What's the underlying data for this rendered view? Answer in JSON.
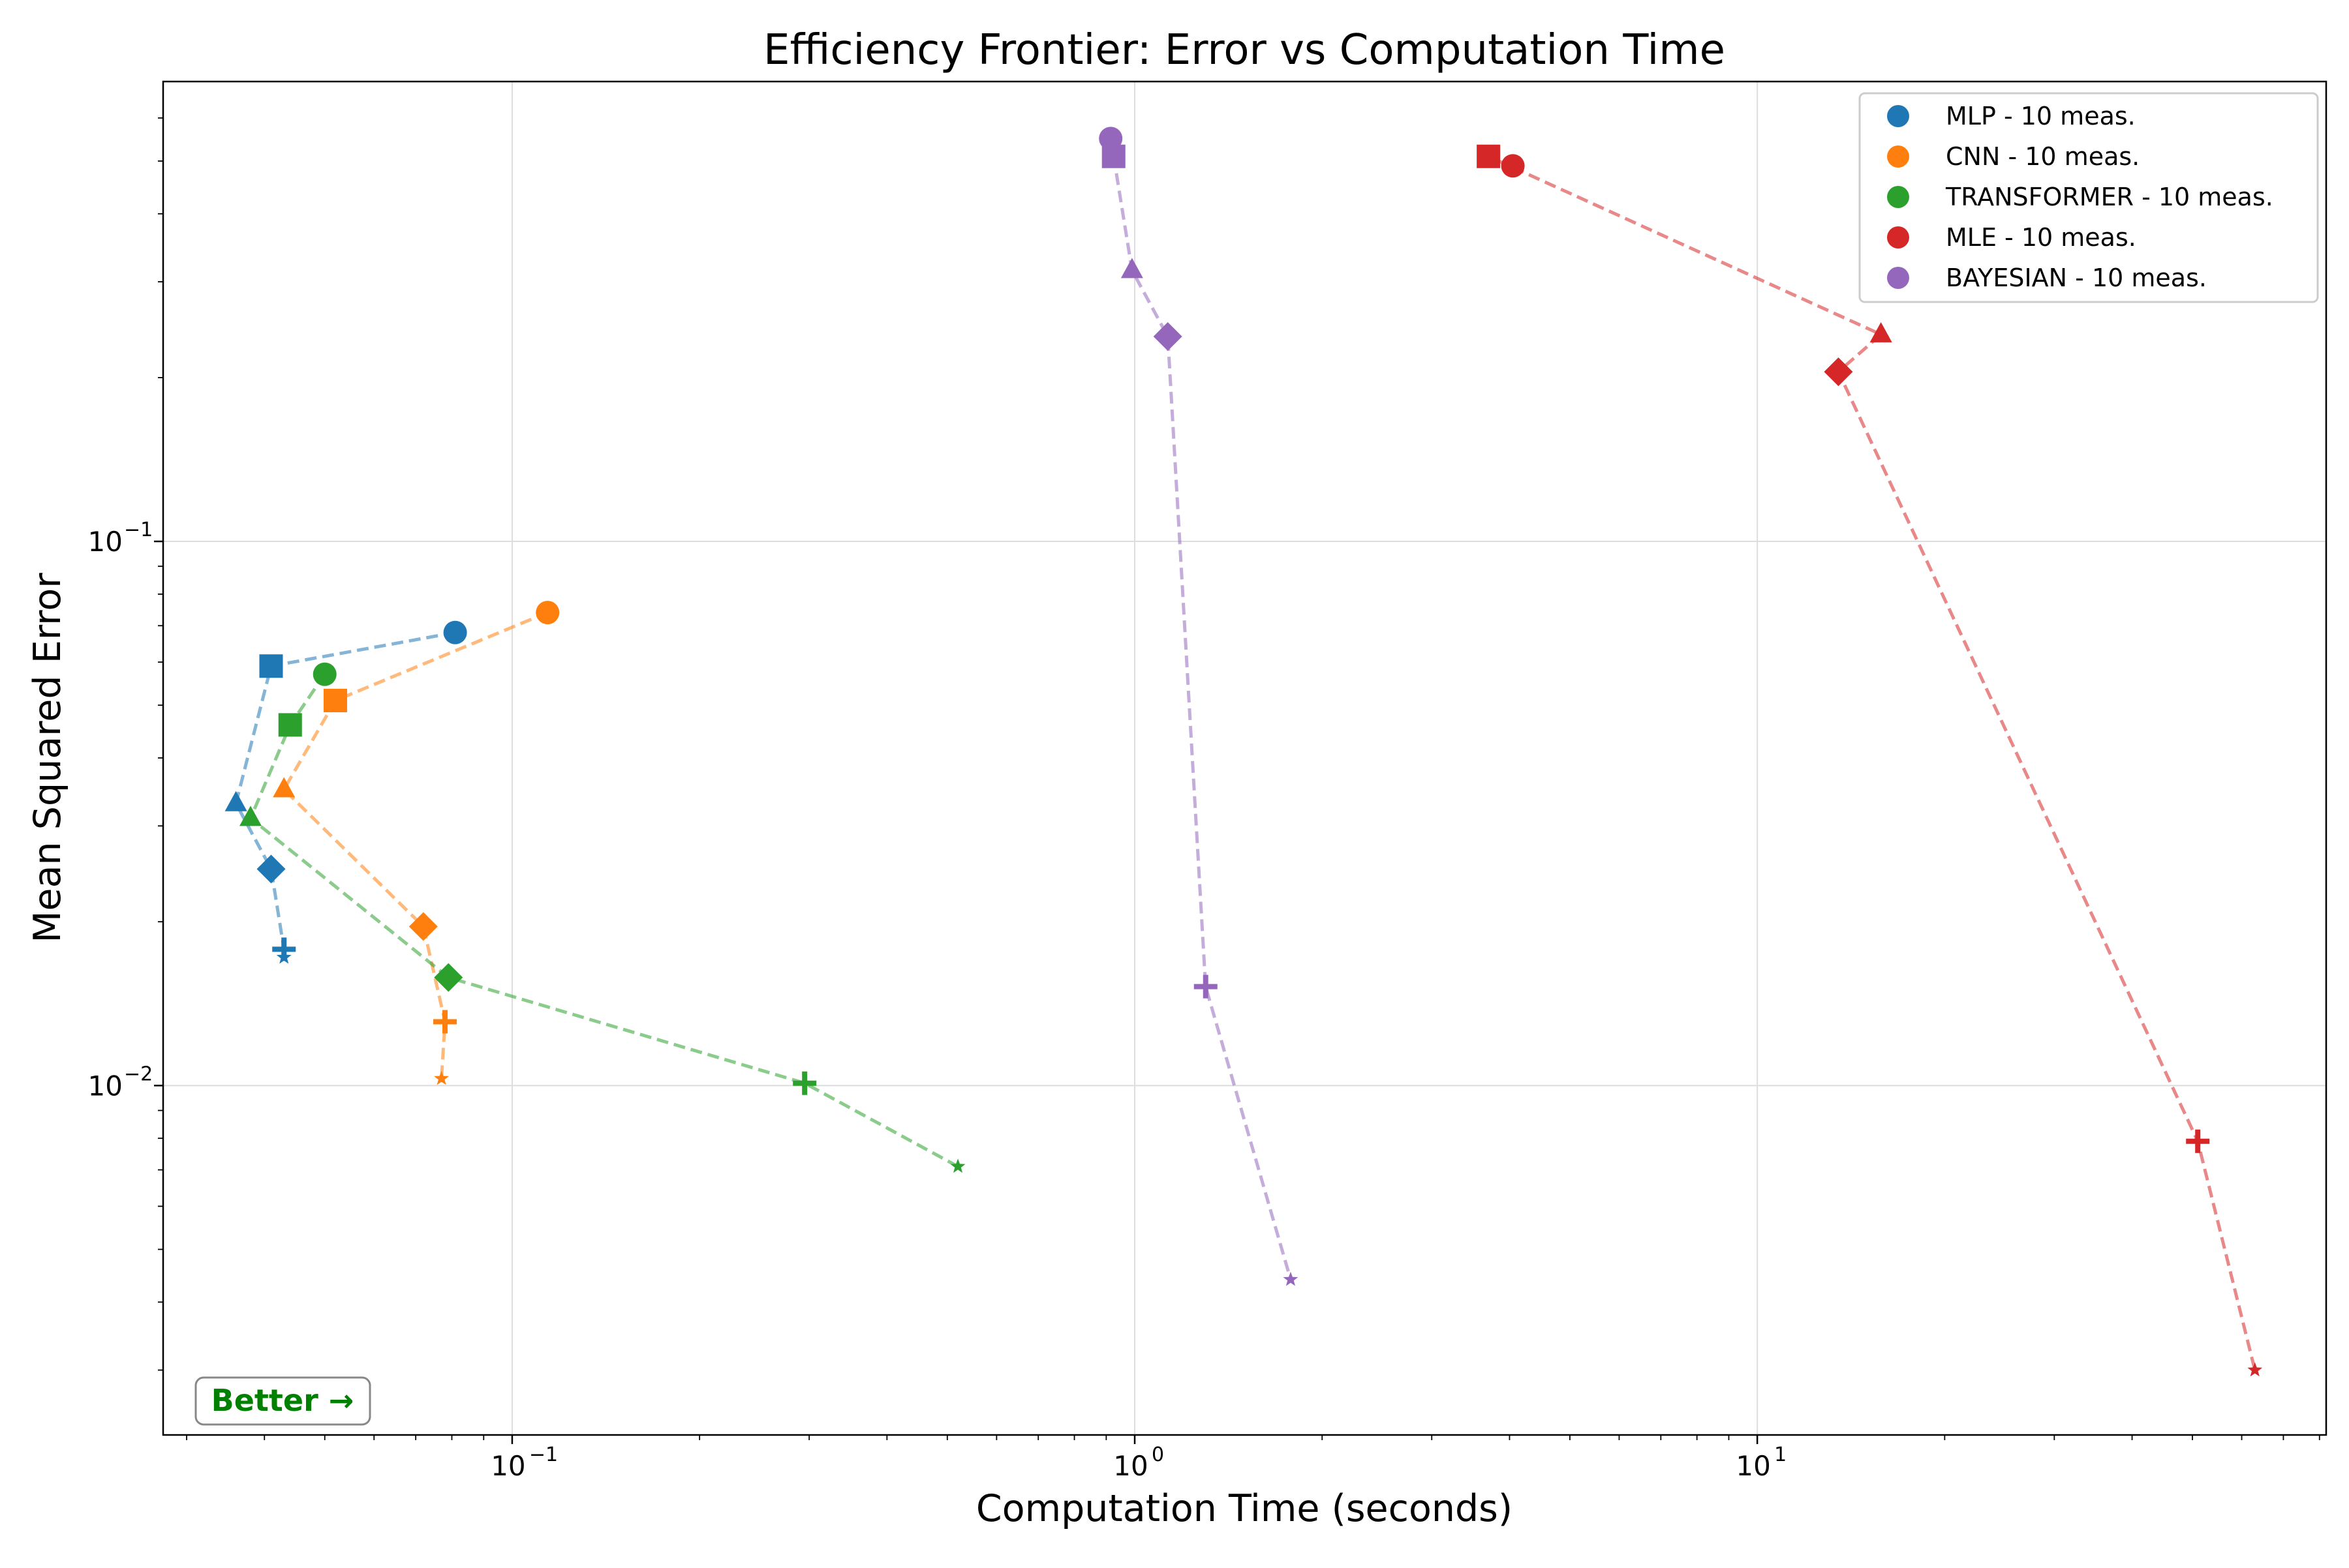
{
  "chart_data": {
    "type": "scatter",
    "title": "Efficiency Frontier: Error vs Computation Time",
    "xlabel": "Computation Time (seconds)",
    "ylabel": "Mean Squared Error",
    "xscale": "log",
    "yscale": "log",
    "xlim": [
      0.0275,
      82
    ],
    "ylim": [
      0.00228,
      0.7
    ],
    "grid": true,
    "legend_position": "top-right",
    "x_ticks": [
      {
        "value": 0.1,
        "base": "10",
        "exponent": "−1"
      },
      {
        "value": 1,
        "base": "10",
        "exponent": "0"
      },
      {
        "value": 10,
        "base": "10",
        "exponent": "1"
      }
    ],
    "y_ticks": [
      {
        "value": 0.01,
        "base": "10",
        "exponent": "−2"
      },
      {
        "value": 0.1,
        "base": "10",
        "exponent": "−1"
      }
    ],
    "marker_sequence": [
      "circle",
      "square",
      "triangle",
      "diamond",
      "plus",
      "star"
    ],
    "series": [
      {
        "name": "MLP - 10 meas.",
        "color": "#1f77b4",
        "points": [
          [
            0.081,
            0.068
          ],
          [
            0.041,
            0.059
          ],
          [
            0.036,
            0.033
          ],
          [
            0.041,
            0.025
          ],
          [
            0.043,
            0.0178
          ],
          [
            0.043,
            0.0172
          ]
        ]
      },
      {
        "name": "CNN - 10 meas.",
        "color": "#ff7f0e",
        "points": [
          [
            0.114,
            0.074
          ],
          [
            0.052,
            0.051
          ],
          [
            0.043,
            0.035
          ],
          [
            0.072,
            0.0196
          ],
          [
            0.078,
            0.0131
          ],
          [
            0.077,
            0.0103
          ]
        ]
      },
      {
        "name": "TRANSFORMER - 10 meas.",
        "color": "#2ca02c",
        "points": [
          [
            0.05,
            0.057
          ],
          [
            0.044,
            0.046
          ],
          [
            0.038,
            0.031
          ],
          [
            0.079,
            0.0158
          ],
          [
            0.295,
            0.0101
          ],
          [
            0.52,
            0.0071
          ]
        ]
      },
      {
        "name": "MLE - 10 meas.",
        "color": "#d62728",
        "points": [
          [
            4.05,
            0.49
          ],
          [
            3.7,
            0.51
          ],
          [
            15.8,
            0.24
          ],
          [
            13.5,
            0.205
          ],
          [
            51.0,
            0.0079
          ],
          [
            63.0,
            0.003
          ]
        ]
      },
      {
        "name": "BAYESIAN - 10 meas.",
        "color": "#9467bd",
        "points": [
          [
            0.915,
            0.55
          ],
          [
            0.925,
            0.51
          ],
          [
            0.99,
            0.315
          ],
          [
            1.13,
            0.238
          ],
          [
            1.3,
            0.0152
          ],
          [
            1.78,
            0.0044
          ]
        ]
      }
    ]
  },
  "annotation": {
    "text": "Better →"
  }
}
